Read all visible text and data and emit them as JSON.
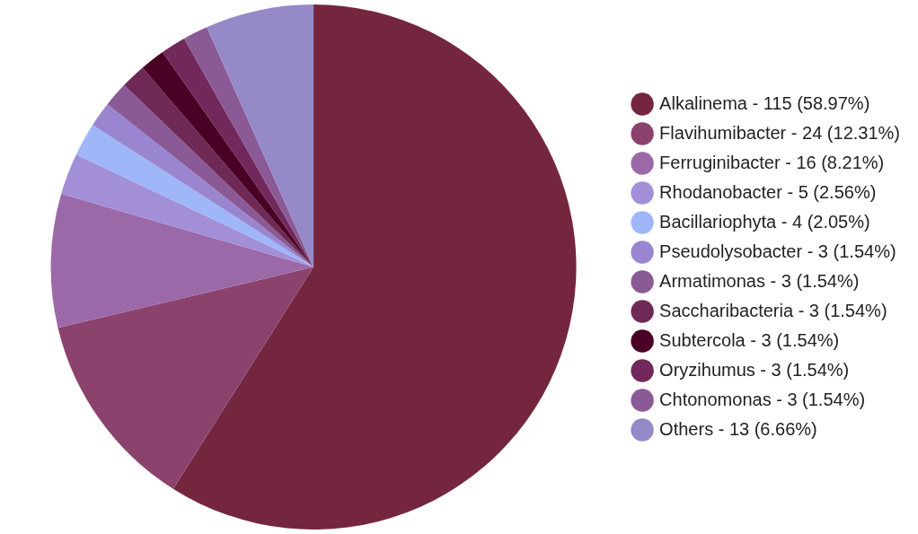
{
  "chart_data": {
    "type": "pie",
    "legend": "right",
    "categories": [
      "Alkalinema - 115 (58.97%)",
      "Flavihumibacter - 24 (12.31%)",
      "Ferruginibacter - 16 (8.21%)",
      "Rhodanobacter - 5 (2.56%)",
      "Bacillariophyta - 4 (2.05%)",
      "Pseudolysobacter - 3 (1.54%)",
      "Armatimonas - 3 (1.54%)",
      "Saccharibacteria - 3 (1.54%)",
      "Subtercola - 3 (1.54%)",
      "Oryzihumus - 3 (1.54%)",
      "Chtonomonas - 3 (1.54%)",
      "Others - 13 (6.66%)"
    ],
    "values": [
      58.97,
      12.31,
      8.21,
      2.56,
      2.05,
      1.54,
      1.54,
      1.54,
      1.54,
      1.54,
      1.54,
      6.66
    ],
    "colors": [
      "#74263f",
      "#8b436e",
      "#9b69a8",
      "#a28fd8",
      "#9fb6f8",
      "#9a86d0",
      "#8a5a96",
      "#6e2a55",
      "#4a0025",
      "#72285a",
      "#8a5a96",
      "#9589c8"
    ]
  }
}
